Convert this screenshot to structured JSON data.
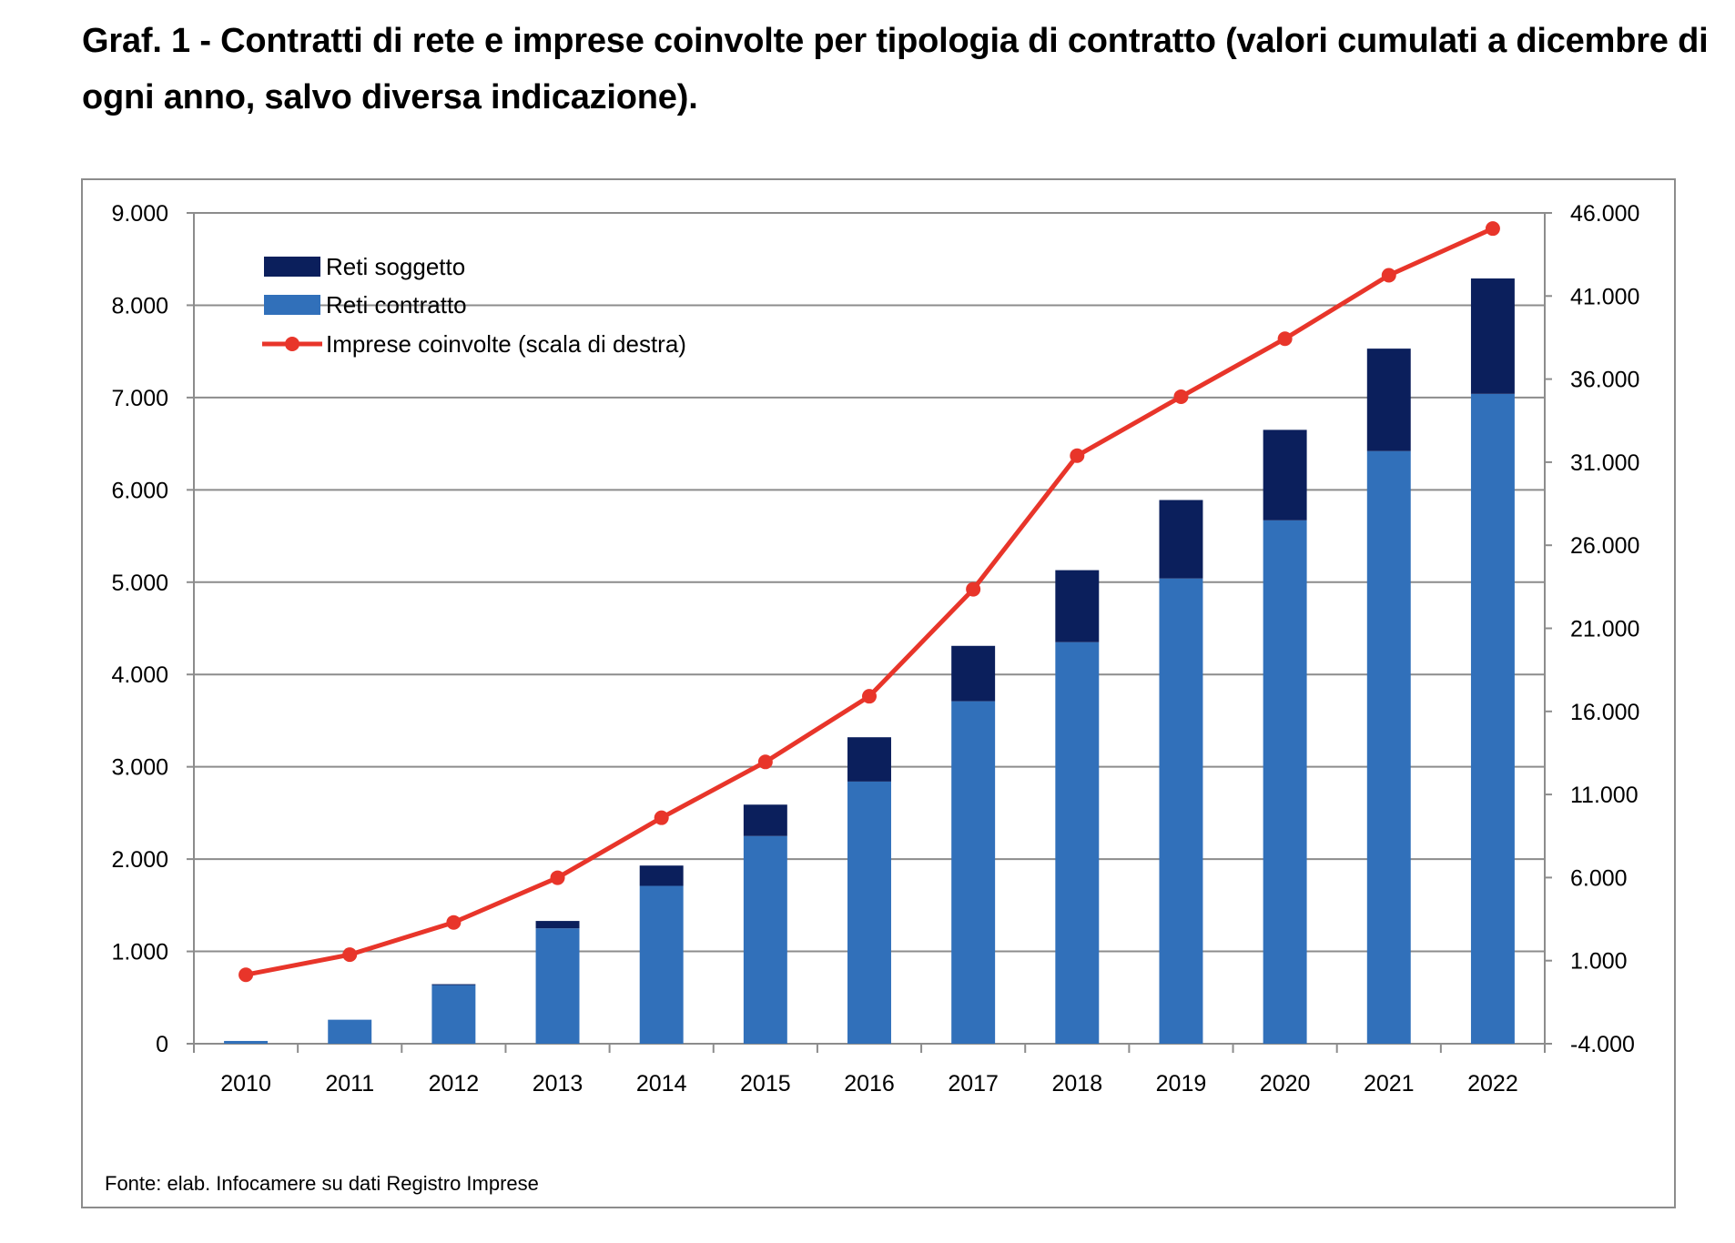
{
  "title": "Graf. 1 - Contratti di rete e imprese coinvolte per tipologia di contratto (valori cumulati a dicembre di ogni anno, salvo diversa indicazione).",
  "source": "Fonte: elab. Infocamere su dati Registro Imprese",
  "colors": {
    "reti_soggetto": "#0B1F5C",
    "reti_contratto": "#3170BA",
    "imprese": "#E8352A",
    "grid": "#8C8C8C"
  },
  "chart_data": {
    "type": "bar",
    "stacked": true,
    "title": "Graf. 1 - Contratti di rete e imprese coinvolte per tipologia di contratto (valori cumulati a dicembre di ogni anno, salvo diversa indicazione).",
    "categories": [
      "2010",
      "2011",
      "2012",
      "2013",
      "2014",
      "2015",
      "2016",
      "2017",
      "2018",
      "2019",
      "2020",
      "2021",
      "2022"
    ],
    "series": [
      {
        "name": "Reti contratto",
        "type": "bar",
        "axis": "left",
        "values": [
          30,
          260,
          635,
          1250,
          1710,
          2250,
          2840,
          3710,
          4350,
          5040,
          5670,
          6420,
          7040
        ]
      },
      {
        "name": "Reti soggetto",
        "type": "bar",
        "axis": "left",
        "values": [
          0,
          0,
          10,
          80,
          220,
          340,
          480,
          600,
          780,
          850,
          980,
          1110,
          1250
        ]
      },
      {
        "name": "Imprese coinvolte (scala di destra)",
        "type": "line",
        "axis": "right",
        "values": [
          150,
          1360,
          3300,
          5990,
          9600,
          12960,
          16910,
          23350,
          31390,
          34940,
          38430,
          42250,
          45060
        ]
      }
    ],
    "legend": [
      "Reti soggetto",
      "Reti contratto",
      "Imprese coinvolte (scala di destra)"
    ],
    "legend_position": "top-left",
    "y_left": {
      "ylim": [
        0,
        9000
      ],
      "ticks": [
        0,
        1000,
        2000,
        3000,
        4000,
        5000,
        6000,
        7000,
        8000,
        9000
      ],
      "tick_labels": [
        "0",
        "1.000",
        "2.000",
        "3.000",
        "4.000",
        "5.000",
        "6.000",
        "7.000",
        "8.000",
        "9.000"
      ]
    },
    "y_right": {
      "ylim": [
        -4000,
        46000
      ],
      "ticks": [
        -4000,
        1000,
        6000,
        11000,
        16000,
        21000,
        26000,
        31000,
        36000,
        41000,
        46000
      ],
      "tick_labels": [
        "-4.000",
        "1.000",
        "6.000",
        "11.000",
        "16.000",
        "21.000",
        "26.000",
        "31.000",
        "36.000",
        "41.000",
        "46.000"
      ]
    },
    "xlabel": "",
    "ylabel": "",
    "grid": true
  }
}
